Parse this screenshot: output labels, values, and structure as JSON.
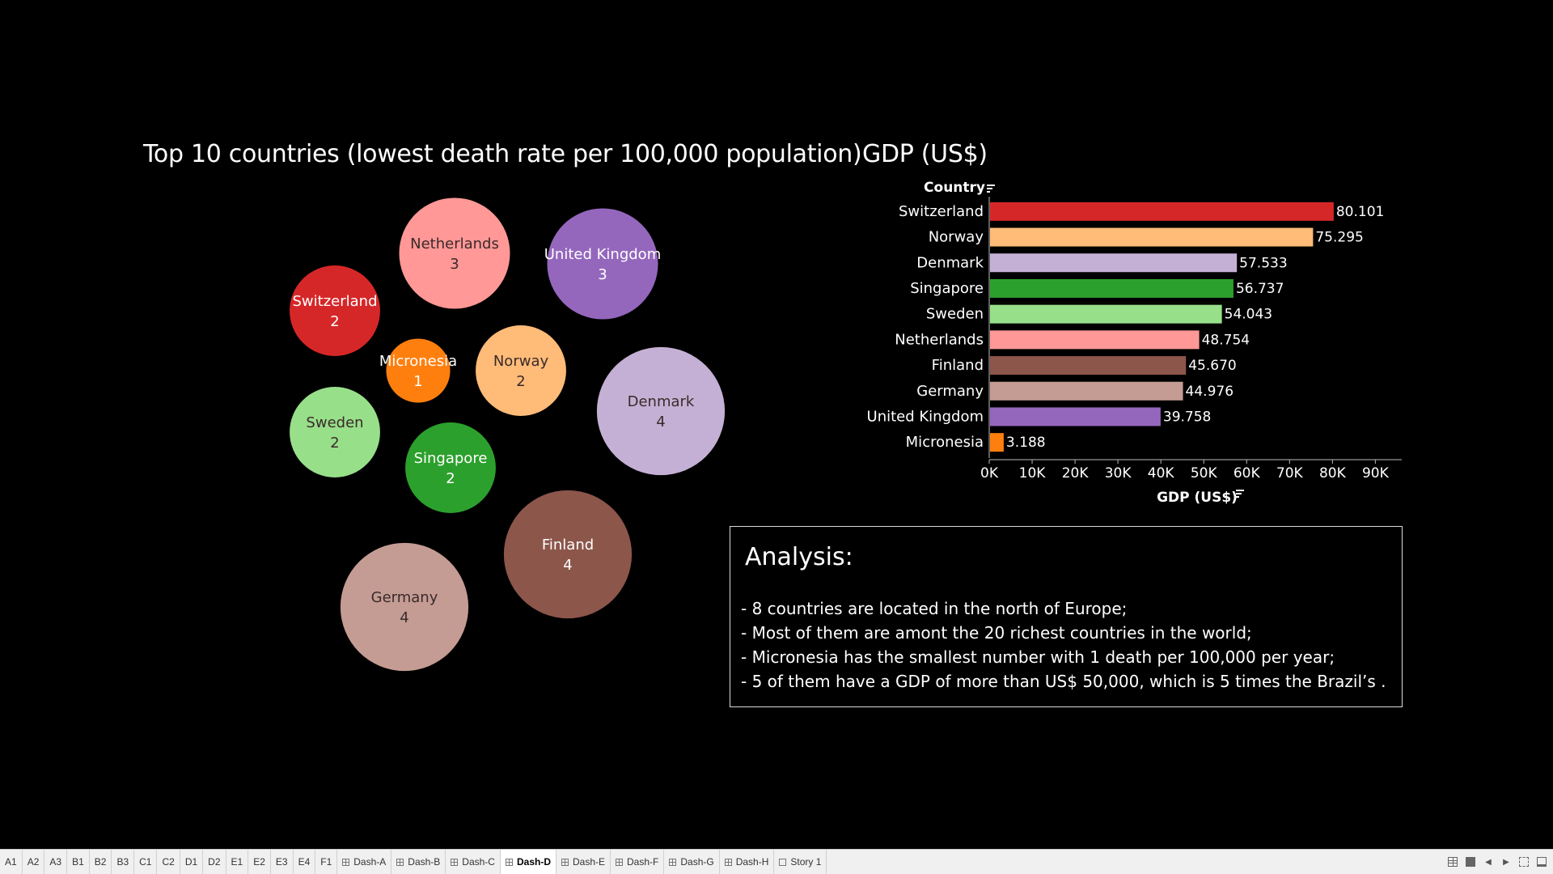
{
  "bubble_chart": {
    "title": "Top 10 countries (lowest death rate per 100,000 population)"
  },
  "bar_chart": {
    "title": "GDP (US$)",
    "row_header": "Country",
    "x_axis_label": "GDP (US$)",
    "sort_icon": "sort-icon"
  },
  "chart_data": [
    {
      "type": "bubble",
      "title": "Top 10 countries (lowest death rate per 100,000 population)",
      "points": [
        {
          "label": "Netherlands",
          "value": 3,
          "color": "#ff9896"
        },
        {
          "label": "United Kingdom",
          "value": 3,
          "color": "#9467bd"
        },
        {
          "label": "Switzerland",
          "value": 2,
          "color": "#d62728"
        },
        {
          "label": "Micronesia",
          "value": 1,
          "color": "#ff7f0e"
        },
        {
          "label": "Norway",
          "value": 2,
          "color": "#ffbb78"
        },
        {
          "label": "Denmark",
          "value": 4,
          "color": "#c5b0d5"
        },
        {
          "label": "Sweden",
          "value": 2,
          "color": "#98df8a"
        },
        {
          "label": "Singapore",
          "value": 2,
          "color": "#2ca02c"
        },
        {
          "label": "Finland",
          "value": 4,
          "color": "#8c564b"
        },
        {
          "label": "Germany",
          "value": 4,
          "color": "#c49c94"
        }
      ]
    },
    {
      "type": "bar",
      "orientation": "horizontal",
      "title": "GDP (US$)",
      "xlabel": "GDP (US$)",
      "ylabel": "Country",
      "xlim": [
        0,
        97000
      ],
      "xticks": [
        0,
        10000,
        20000,
        30000,
        40000,
        50000,
        60000,
        70000,
        80000,
        90000
      ],
      "xtick_labels": [
        "0K",
        "10K",
        "20K",
        "30K",
        "40K",
        "50K",
        "60K",
        "70K",
        "80K",
        "90K"
      ],
      "categories": [
        "Switzerland",
        "Norway",
        "Denmark",
        "Singapore",
        "Sweden",
        "Netherlands",
        "Finland",
        "Germany",
        "United Kingdom",
        "Micronesia"
      ],
      "values": [
        80101,
        75295,
        57533,
        56737,
        54043,
        48754,
        45670,
        44976,
        39758,
        3188
      ],
      "value_labels": [
        "80.101",
        "75.295",
        "57.533",
        "56.737",
        "54.043",
        "48.754",
        "45.670",
        "44.976",
        "39.758",
        "3.188"
      ],
      "colors": [
        "#d62728",
        "#ffbb78",
        "#c5b0d5",
        "#2ca02c",
        "#98df8a",
        "#ff9896",
        "#8c564b",
        "#c49c94",
        "#9467bd",
        "#ff7f0e"
      ]
    }
  ],
  "analysis": {
    "heading": "Analysis:",
    "lines": [
      "- 8 countries are located in the north of Europe;",
      "- Most of them are amont the 20 richest countries in the world;",
      "- Micronesia has the smallest number with 1 death per 100,000 per year;",
      "- 5 of them have a GDP of more than US$ 50,000, which is 5 times the Brazil’s ."
    ]
  },
  "tabs": [
    {
      "label": "A1",
      "kind": "sheet"
    },
    {
      "label": "A2",
      "kind": "sheet"
    },
    {
      "label": "A3",
      "kind": "sheet"
    },
    {
      "label": "B1",
      "kind": "sheet"
    },
    {
      "label": "B2",
      "kind": "sheet"
    },
    {
      "label": "B3",
      "kind": "sheet"
    },
    {
      "label": "C1",
      "kind": "sheet"
    },
    {
      "label": "C2",
      "kind": "sheet"
    },
    {
      "label": "D1",
      "kind": "sheet"
    },
    {
      "label": "D2",
      "kind": "sheet"
    },
    {
      "label": "E1",
      "kind": "sheet"
    },
    {
      "label": "E2",
      "kind": "sheet"
    },
    {
      "label": "E3",
      "kind": "sheet"
    },
    {
      "label": "E4",
      "kind": "sheet"
    },
    {
      "label": "F1",
      "kind": "sheet"
    },
    {
      "label": "Dash-A",
      "kind": "dashboard"
    },
    {
      "label": "Dash-B",
      "kind": "dashboard"
    },
    {
      "label": "Dash-C",
      "kind": "dashboard"
    },
    {
      "label": "Dash-D",
      "kind": "dashboard",
      "active": true
    },
    {
      "label": "Dash-E",
      "kind": "dashboard"
    },
    {
      "label": "Dash-F",
      "kind": "dashboard"
    },
    {
      "label": "Dash-G",
      "kind": "dashboard"
    },
    {
      "label": "Dash-H",
      "kind": "dashboard"
    },
    {
      "label": "Story 1",
      "kind": "story"
    }
  ],
  "tab_controls": [
    "show-sheet-sorter-icon",
    "show-tabs-icon",
    "prev-icon",
    "next-icon",
    "fullscreen-icon",
    "presentation-icon"
  ]
}
